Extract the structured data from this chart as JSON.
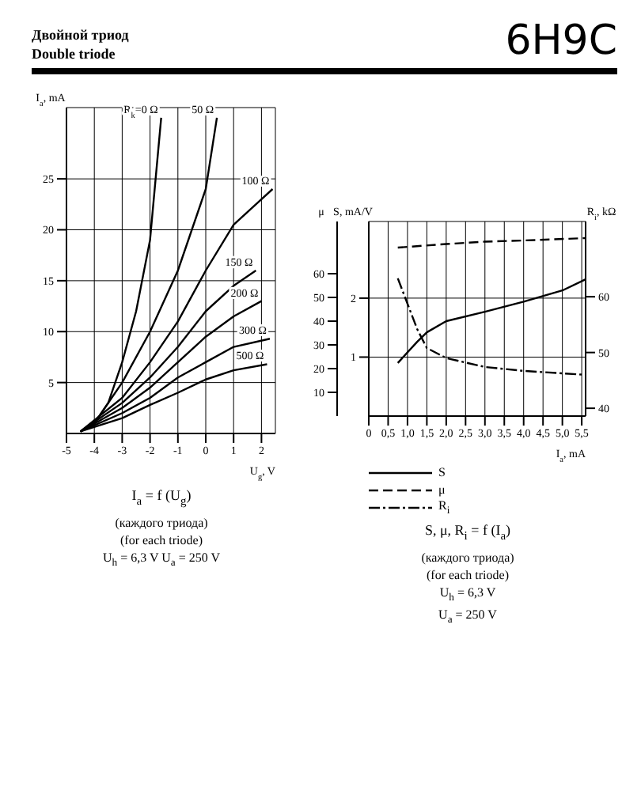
{
  "chart_data": [
    {
      "type": "other",
      "title": "6H9C",
      "annotations": [
        "Двойной триод",
        "Double triode"
      ]
    },
    {
      "type": "line",
      "title": "I$_{a}$ = f (U$_{g}$)",
      "annotations": [
        "(каждого триода)",
        "(for each triode)",
        "U$_{h}$ = 6,3 V    U$_{a}$ = 250 V"
      ],
      "xlabel": "U$_{g}$, V",
      "ylabel": "I$_{a}$, mA",
      "xlim": [
        -5,
        2.5
      ],
      "xticks": [
        -5,
        -4,
        -3,
        -2,
        -1,
        0,
        1,
        2
      ],
      "ylim": [
        0,
        32
      ],
      "yticks": [
        5,
        10,
        15,
        20,
        25
      ],
      "grid": true,
      "series": [
        {
          "name": "R$_{k}$=0 Ω",
          "color": "#000000",
          "x": [
            -4.5,
            -4,
            -3.5,
            -3,
            -2.5,
            -2,
            -1.6
          ],
          "values": [
            0.2,
            1,
            3,
            7,
            12,
            19,
            31
          ]
        },
        {
          "name": "50 Ω",
          "color": "#000000",
          "x": [
            -4.5,
            -4,
            -3,
            -2,
            -1,
            0,
            0.4
          ],
          "values": [
            0.2,
            1,
            5,
            10,
            16,
            24,
            31
          ]
        },
        {
          "name": "100 Ω",
          "color": "#000000",
          "x": [
            -4.5,
            -3,
            -2,
            -1,
            0,
            1,
            2.4
          ],
          "values": [
            0.2,
            3.5,
            7,
            11,
            16,
            20.5,
            24
          ]
        },
        {
          "name": "150 Ω",
          "color": "#000000",
          "x": [
            -4.5,
            -3,
            -2,
            -1,
            0,
            1,
            1.8
          ],
          "values": [
            0.2,
            3,
            5.5,
            8.5,
            12,
            14.5,
            16
          ]
        },
        {
          "name": "200 Ω",
          "color": "#000000",
          "x": [
            -4.5,
            -3,
            -2,
            -1,
            0,
            1,
            2
          ],
          "values": [
            0.2,
            2.5,
            4.5,
            7,
            9.5,
            11.5,
            13
          ]
        },
        {
          "name": "300 Ω",
          "color": "#000000",
          "x": [
            -4.5,
            -3,
            -2,
            -1,
            0,
            1,
            2.3
          ],
          "values": [
            0.2,
            2,
            3.5,
            5.5,
            7,
            8.5,
            9.3
          ]
        },
        {
          "name": "500 Ω",
          "color": "#000000",
          "x": [
            -4.5,
            -3,
            -2,
            -1,
            0,
            1,
            2.2
          ],
          "values": [
            0.2,
            1.5,
            2.8,
            4,
            5.3,
            6.2,
            6.8
          ]
        }
      ]
    },
    {
      "type": "line",
      "title": "S, μ, R$_{i}$ = f (I$_{a}$)",
      "annotations": [
        "(каждого триода)",
        "(for each triode)",
        "U$_{h}$ = 6,3 V",
        "U$_{a}$ = 250 V"
      ],
      "xlabel": "I$_{a}$, mA",
      "ylabel": "S, mA/V",
      "y2label": "μ",
      "y3label": "R$_{i}$, kΩ",
      "legend": "bottom",
      "grid": true,
      "xlim": [
        0,
        5.6
      ],
      "xticks": [
        0,
        {
          "value": 0.5,
          "label": "0,5"
        },
        {
          "value": 1,
          "label": "1,0"
        },
        {
          "value": 1.5,
          "label": "1,5"
        },
        {
          "value": 2,
          "label": "2,0"
        },
        {
          "value": 2.5,
          "label": "2,5"
        },
        {
          "value": 3,
          "label": "3,0"
        },
        {
          "value": 3.5,
          "label": "3,5"
        },
        {
          "value": 4,
          "label": "4,0"
        },
        {
          "value": 4.5,
          "label": "4,5"
        },
        {
          "value": 5,
          "label": "5,0"
        },
        {
          "value": 5.5,
          "label": "5,5"
        }
      ],
      "ylim": [
        0,
        3.3
      ],
      "yticks": [
        1,
        2
      ],
      "y2lim": [
        0,
        82
      ],
      "y2ticks": [
        10,
        20,
        30,
        40,
        50,
        60
      ],
      "y3lim": [
        38.6,
        73.5
      ],
      "y3ticks": [
        40,
        50,
        60
      ],
      "series": [
        {
          "name": "S",
          "color": "#000000",
          "line_style": "solid",
          "axis": "y",
          "x": [
            0.75,
            1.25,
            1.5,
            2,
            3,
            4,
            5,
            5.6
          ],
          "values": [
            0.9,
            1.26,
            1.42,
            1.61,
            1.77,
            1.94,
            2.13,
            2.32
          ]
        },
        {
          "name": "μ",
          "color": "#000000",
          "line_style": "dashed",
          "axis": "y2",
          "x": [
            0.75,
            2,
            3,
            4,
            5.6
          ],
          "values": [
            71,
            72.5,
            73.5,
            74,
            75
          ]
        },
        {
          "name": "R$_{i}$",
          "color": "#000000",
          "line_style": "dashdot",
          "axis": "y3",
          "x": [
            0.75,
            1.25,
            1.5,
            2,
            3,
            4,
            5.6
          ],
          "values": [
            63.3,
            54.2,
            50.8,
            49,
            47.4,
            46.7,
            46
          ]
        }
      ]
    }
  ]
}
